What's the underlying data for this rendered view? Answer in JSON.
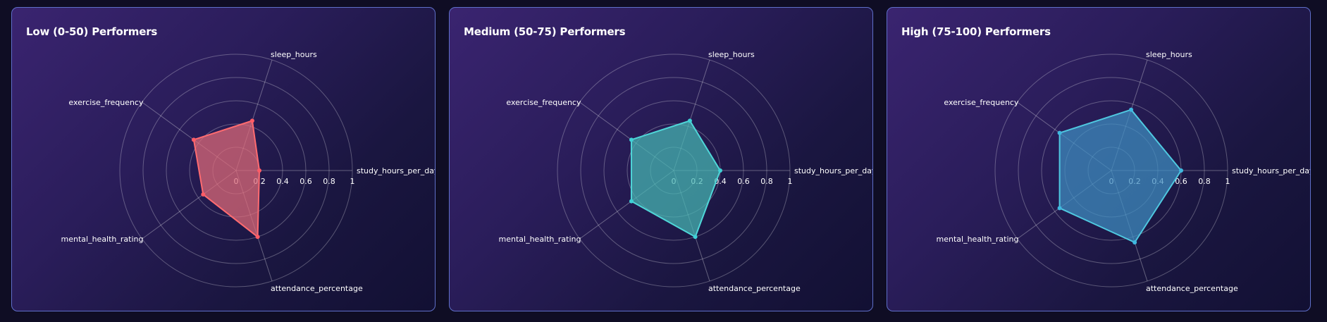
{
  "page": {
    "background": "#0f0d24",
    "panel_border": "#5f6fc9"
  },
  "chart_data": [
    {
      "type": "radar",
      "title": "Low (0-50) Performers",
      "axes": [
        "study_hours_per_day",
        "sleep_hours",
        "exercise_frequency",
        "mental_health_rating",
        "attendance_percentage"
      ],
      "values": [
        0.2,
        0.45,
        0.45,
        0.35,
        0.6
      ],
      "range": [
        0,
        1
      ],
      "ticks": [
        "0",
        "0.2",
        "0.4",
        "0.6",
        "0.8",
        "1"
      ],
      "fill": "#e06b78",
      "stroke": "#ff6b70",
      "point": "#ff5c66",
      "grid": true
    },
    {
      "type": "radar",
      "title": "Medium (50-75) Performers",
      "axes": [
        "study_hours_per_day",
        "sleep_hours",
        "exercise_frequency",
        "mental_health_rating",
        "attendance_percentage"
      ],
      "values": [
        0.4,
        0.45,
        0.45,
        0.45,
        0.6
      ],
      "range": [
        0,
        1
      ],
      "ticks": [
        "0",
        "0.2",
        "0.4",
        "0.6",
        "0.8",
        "1"
      ],
      "fill": "#47b8b4",
      "stroke": "#4fd6d8",
      "point": "#3fd0d6",
      "grid": true
    },
    {
      "type": "radar",
      "title": "High (75-100) Performers",
      "axes": [
        "study_hours_per_day",
        "sleep_hours",
        "exercise_frequency",
        "mental_health_rating",
        "attendance_percentage"
      ],
      "values": [
        0.6,
        0.55,
        0.55,
        0.55,
        0.65
      ],
      "range": [
        0,
        1
      ],
      "ticks": [
        "0",
        "0.2",
        "0.4",
        "0.6",
        "0.8",
        "1"
      ],
      "fill": "#3f8fc2",
      "stroke": "#4fc8e0",
      "point": "#3fb8e0",
      "grid": true
    }
  ]
}
